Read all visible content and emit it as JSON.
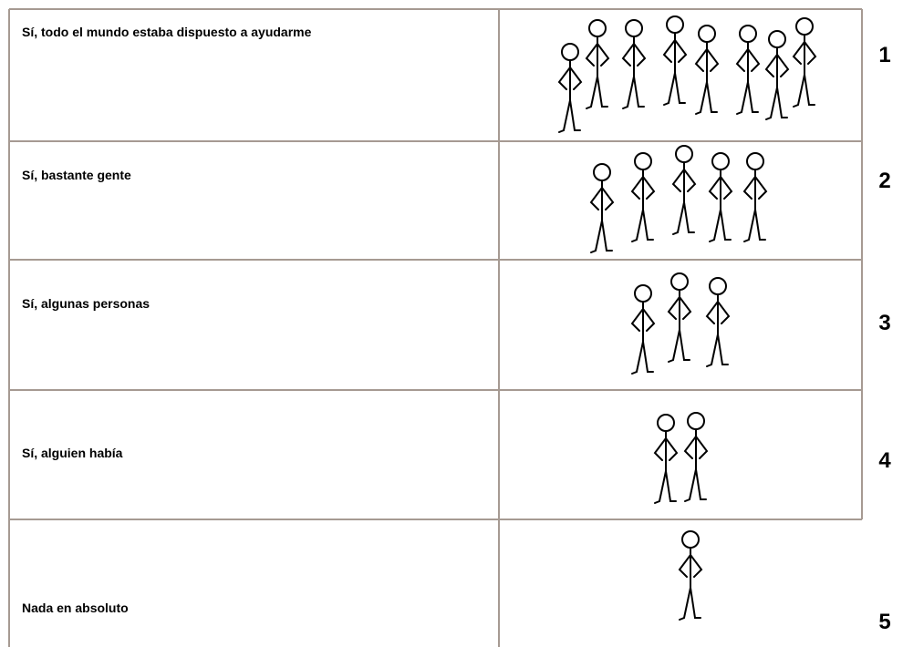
{
  "rows": [
    {
      "label": "Sí, todo el mundo estaba dispuesto a ayudarme",
      "number": "1"
    },
    {
      "label": "Sí, bastante gente",
      "number": "2"
    },
    {
      "label": "Sí, algunas personas",
      "number": "3"
    },
    {
      "label": "Sí, alguien había",
      "number": "4"
    },
    {
      "label": "Nada en absoluto",
      "number": "5"
    }
  ]
}
